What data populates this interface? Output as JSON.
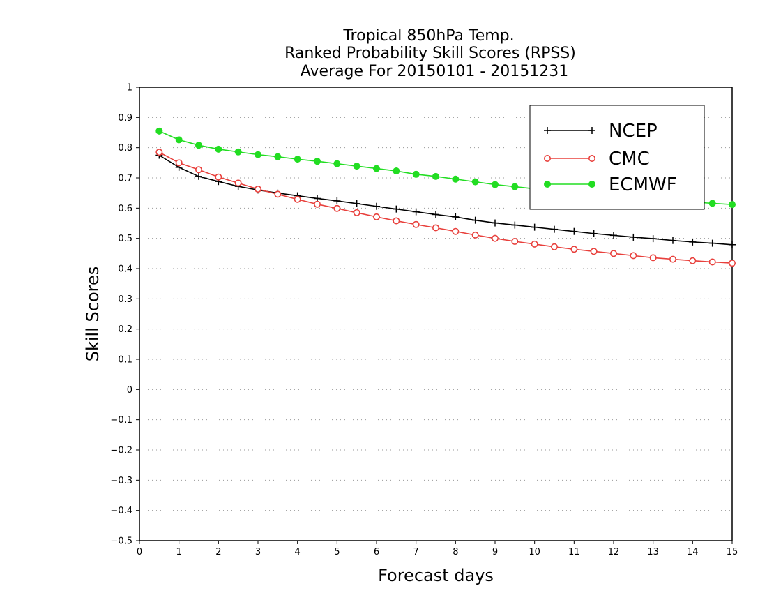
{
  "chart_data": {
    "type": "line",
    "title_lines": [
      "Tropical 850hPa Temp.",
      "Ranked Probability Skill Scores (RPSS)",
      "Average For 20150101 - 20151231"
    ],
    "xlabel": "Forecast days",
    "ylabel": "Skill Scores",
    "xlim": [
      0,
      15
    ],
    "ylim": [
      -0.5,
      1
    ],
    "xticks": [
      0,
      1,
      2,
      3,
      4,
      5,
      6,
      7,
      8,
      9,
      10,
      11,
      12,
      13,
      14,
      15
    ],
    "xtick_labels": [
      "0",
      "1",
      "2",
      "3",
      "4",
      "5",
      "6",
      "7",
      "8",
      "9",
      "10",
      "11",
      "12",
      "13",
      "14",
      "15"
    ],
    "yticks": [
      -0.5,
      -0.4,
      -0.3,
      -0.2,
      -0.1,
      0,
      0.1,
      0.2,
      0.3,
      0.4,
      0.5,
      0.6,
      0.7,
      0.8,
      0.9,
      1
    ],
    "ytick_labels": [
      "−0.5",
      "−0.4",
      "−0.3",
      "−0.2",
      "−0.1",
      "0",
      "0.1",
      "0.2",
      "0.3",
      "0.4",
      "0.5",
      "0.6",
      "0.7",
      "0.8",
      "0.9",
      "1"
    ],
    "grid": "horizontal dotted",
    "legend_position": "top-right",
    "x": [
      0.5,
      1.0,
      1.5,
      2.0,
      2.5,
      3.0,
      3.5,
      4.0,
      4.5,
      5.0,
      5.5,
      6.0,
      6.5,
      7.0,
      7.5,
      8.0,
      8.5,
      9.0,
      9.5,
      10.0,
      10.5,
      11.0,
      11.5,
      12.0,
      12.5,
      13.0,
      13.5,
      14.0,
      14.5,
      15.0
    ],
    "series": [
      {
        "name": "NCEP",
        "color": "#000000",
        "marker": "plus",
        "values": [
          0.775,
          0.735,
          0.705,
          0.688,
          0.672,
          0.66,
          0.65,
          0.641,
          0.632,
          0.624,
          0.615,
          0.606,
          0.597,
          0.588,
          0.579,
          0.571,
          0.56,
          0.551,
          0.544,
          0.537,
          0.53,
          0.523,
          0.516,
          0.51,
          0.504,
          0.499,
          0.493,
          0.488,
          0.484,
          0.479
        ]
      },
      {
        "name": "CMC",
        "color": "#e8403c",
        "marker": "open-circle",
        "values": [
          0.785,
          0.75,
          0.727,
          0.703,
          0.683,
          0.663,
          0.646,
          0.629,
          0.613,
          0.599,
          0.585,
          0.571,
          0.558,
          0.546,
          0.535,
          0.523,
          0.511,
          0.5,
          0.49,
          0.481,
          0.472,
          0.464,
          0.457,
          0.45,
          0.443,
          0.436,
          0.431,
          0.426,
          0.422,
          0.418
        ]
      },
      {
        "name": "ECMWF",
        "color": "#22dd22",
        "marker": "filled-circle",
        "values": [
          0.855,
          0.826,
          0.808,
          0.795,
          0.786,
          0.777,
          0.77,
          0.762,
          0.755,
          0.747,
          0.739,
          0.731,
          0.723,
          0.712,
          0.705,
          0.696,
          0.687,
          0.678,
          0.671,
          0.664,
          0.658,
          0.652,
          0.646,
          0.64,
          0.634,
          0.63,
          0.625,
          0.62,
          0.616,
          0.612
        ]
      }
    ]
  }
}
